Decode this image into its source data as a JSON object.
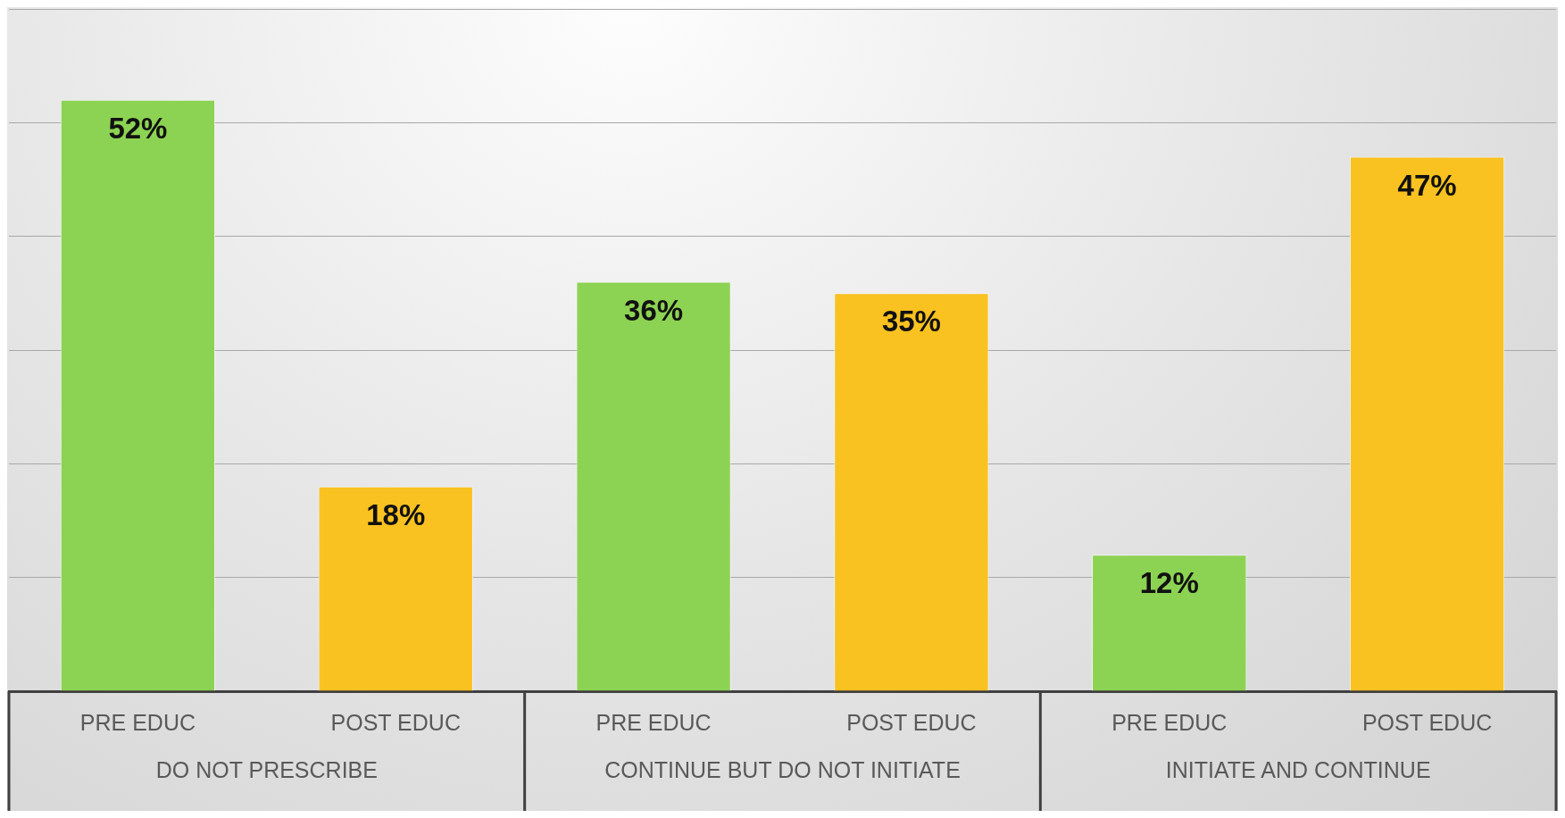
{
  "chart_data": {
    "type": "bar",
    "categories": [
      "PRE EDUC",
      "POST EDUC",
      "PRE EDUC",
      "POST EDUC",
      "PRE EDUC",
      "POST EDUC"
    ],
    "values": [
      52,
      18,
      36,
      35,
      12,
      47
    ],
    "colors": [
      "#8dd353",
      "#f9c220",
      "#8dd353",
      "#f9c220",
      "#8dd353",
      "#f9c220"
    ],
    "value_labels": [
      "52%",
      "18%",
      "36%",
      "35%",
      "12%",
      "47%"
    ],
    "annotations": [
      "DO NOT PRESCRIBE",
      "CONTINUE BUT DO NOT INITIATE",
      "INITIATE AND CONTINUE"
    ],
    "ylim": [
      0,
      60
    ],
    "yticks": [
      {
        "value": 0,
        "label": null
      },
      {
        "value": 10,
        "label": null
      },
      {
        "value": 20,
        "label": null
      },
      {
        "value": 30,
        "label": null
      },
      {
        "value": 40,
        "label": null
      },
      {
        "value": 50,
        "label": null
      },
      {
        "value": 60,
        "label": null
      }
    ],
    "grid": "y",
    "tick_labels": "x",
    "legend": false
  }
}
